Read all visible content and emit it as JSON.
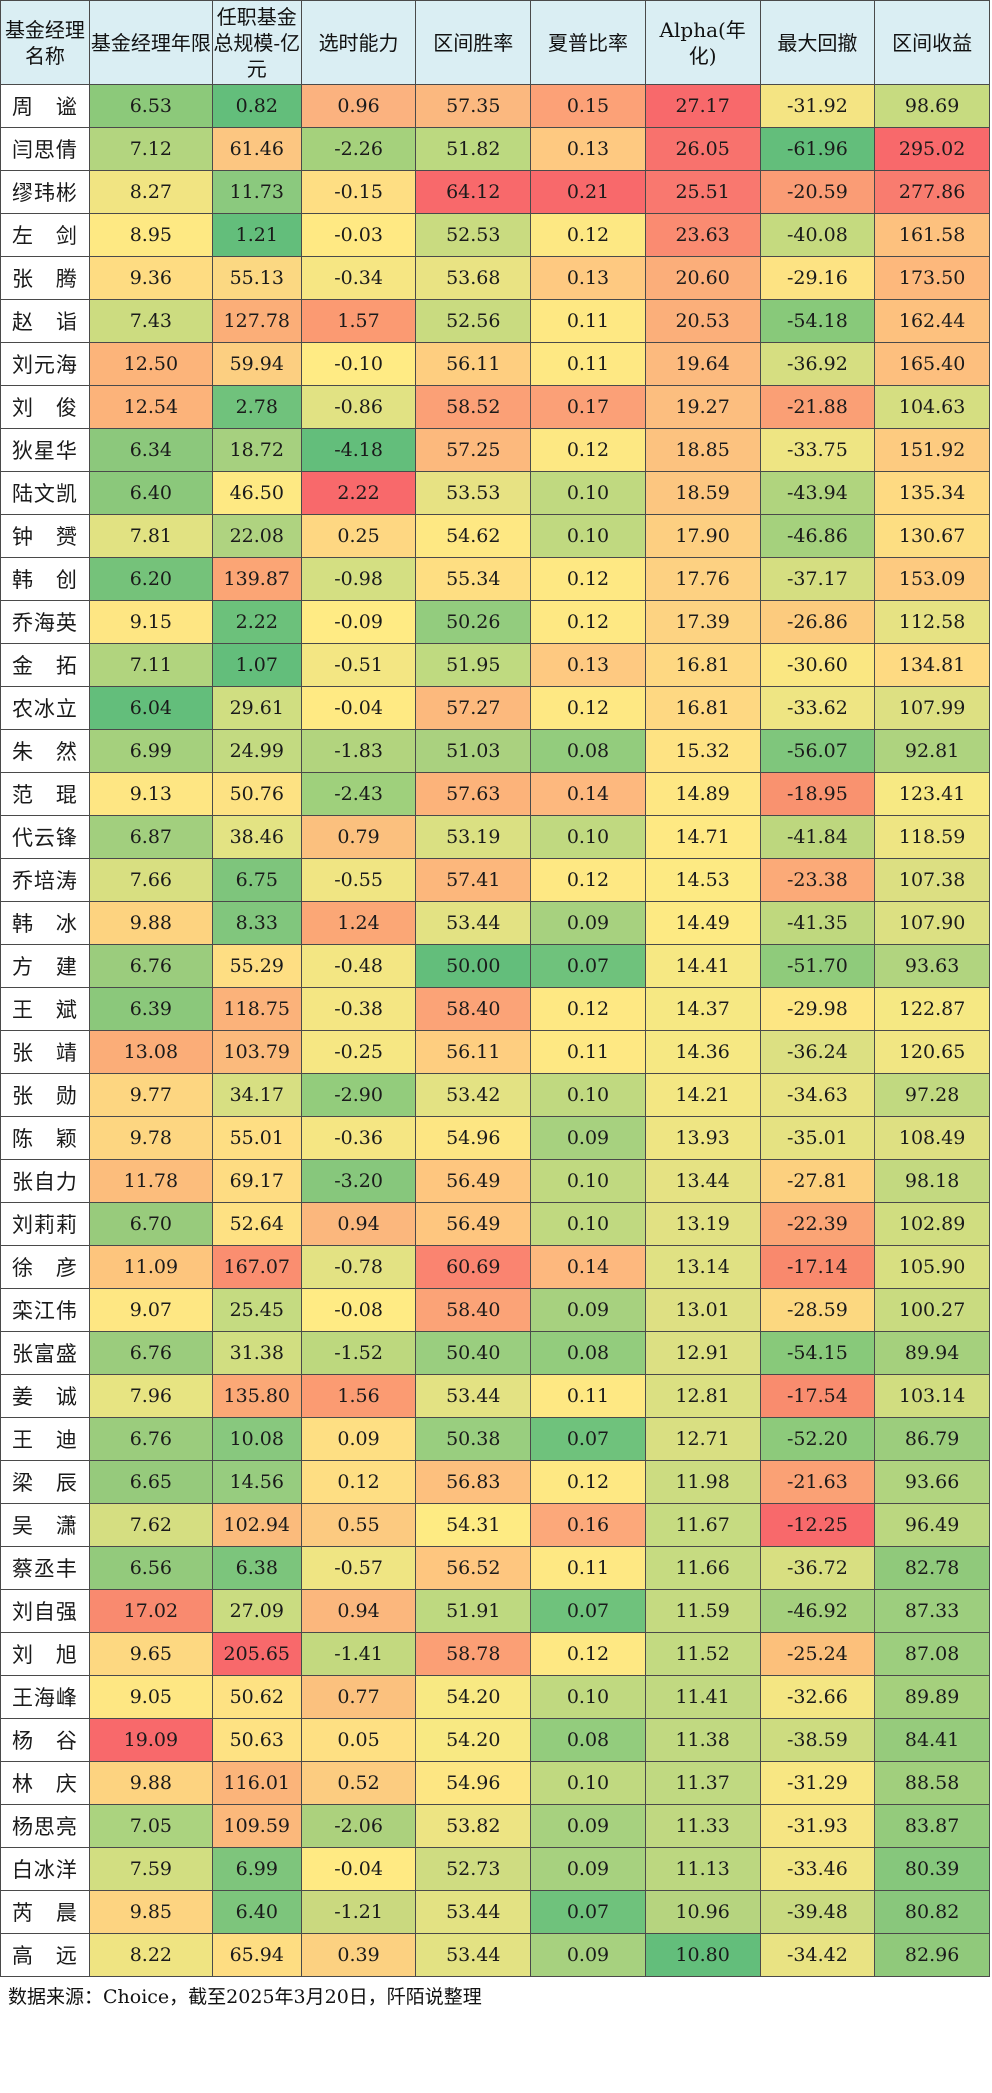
{
  "table": {
    "headers": [
      "基金经理名称",
      "基金经理年限",
      "任职基金总规模-亿元",
      "选时能力",
      "区间胜率",
      "夏普比率",
      "Alpha(年化)",
      "最大回撤",
      "区间收益"
    ],
    "rows": [
      {
        "name": "周　谧",
        "values": [
          "6.53",
          "0.82",
          "0.96",
          "57.35",
          "0.15",
          "27.17",
          "-31.92",
          "98.69"
        ],
        "colors": [
          "#8CC97A",
          "#63BE7B",
          "#FBB27F",
          "#FBB87F",
          "#FCA177",
          "#F8696B",
          "#F4E483",
          "#C7DB80"
        ]
      },
      {
        "name": "闫思倩",
        "values": [
          "7.12",
          "61.46",
          "-2.26",
          "51.82",
          "0.13",
          "26.05",
          "-61.96",
          "295.02"
        ],
        "colors": [
          "#B3D57F",
          "#FCC681",
          "#A5D17C",
          "#BCD980",
          "#FEC981",
          "#F8726D",
          "#63BE7B",
          "#F8696B"
        ]
      },
      {
        "name": "缪玮彬",
        "values": [
          "8.27",
          "11.73",
          "-0.15",
          "64.12",
          "0.21",
          "25.51",
          "-20.59",
          "277.86"
        ],
        "colors": [
          "#F1E482",
          "#8BC97E",
          "#FEDE83",
          "#F8696B",
          "#F8696B",
          "#F9786F",
          "#FA9C75",
          "#F97C6F"
        ]
      },
      {
        "name": "左　剑",
        "values": [
          "8.95",
          "1.21",
          "-0.03",
          "52.53",
          "0.12",
          "23.63",
          "-40.08",
          "161.58"
        ],
        "colors": [
          "#FEE983",
          "#63BE7B",
          "#FFE983",
          "#C9DB80",
          "#FDE883",
          "#FA8B71",
          "#C5DA7F",
          "#FDC17E"
        ]
      },
      {
        "name": "张　腾",
        "values": [
          "9.36",
          "55.13",
          "-0.34",
          "53.68",
          "0.13",
          "20.60",
          "-29.16",
          "173.50"
        ],
        "colors": [
          "#FEDC82",
          "#FBD882",
          "#F6E683",
          "#E9E383",
          "#FEC981",
          "#FBAE7A",
          "#FDE383",
          "#FDB87C"
        ]
      },
      {
        "name": "赵　诣",
        "values": [
          "7.43",
          "127.78",
          "1.57",
          "52.56",
          "0.11",
          "20.53",
          "-54.18",
          "162.44"
        ],
        "colors": [
          "#CCDC80",
          "#FBAE78",
          "#FB9A72",
          "#C9DB80",
          "#FEE883",
          "#FBAF7A",
          "#88C97A",
          "#FDC17E"
        ]
      },
      {
        "name": "刘元海",
        "values": [
          "12.50",
          "59.94",
          "-0.10",
          "56.11",
          "0.11",
          "19.64",
          "-36.92",
          "165.40"
        ],
        "colors": [
          "#FCB47A",
          "#FCCF81",
          "#FFEB84",
          "#FECE80",
          "#FEE883",
          "#FCBA7E",
          "#D6DE81",
          "#FDBF7E"
        ]
      },
      {
        "name": "刘　俊",
        "values": [
          "12.54",
          "2.78",
          "-0.86",
          "58.52",
          "0.17",
          "19.27",
          "-21.88",
          "104.63"
        ],
        "colors": [
          "#FCB37A",
          "#70C27C",
          "#E1E283",
          "#FBA076",
          "#FBA077",
          "#FCBE7F",
          "#FA9F75",
          "#D5DE81"
        ]
      },
      {
        "name": "狄星华",
        "values": [
          "6.34",
          "18.72",
          "-4.18",
          "57.25",
          "0.12",
          "18.85",
          "-33.75",
          "151.92"
        ],
        "colors": [
          "#8CC87C",
          "#A6D07F",
          "#63BE7B",
          "#FCB97D",
          "#FDE883",
          "#FCC27F",
          "#EEE583",
          "#FDCB80"
        ]
      },
      {
        "name": "陆文凯",
        "values": [
          "6.40",
          "46.50",
          "2.22",
          "53.53",
          "0.10",
          "18.59",
          "-43.94",
          "135.34"
        ],
        "colors": [
          "#8BC87B",
          "#FEE983",
          "#F8696B",
          "#E7E283",
          "#C0D980",
          "#FCC680",
          "#B0D47E",
          "#FEDA82"
        ]
      },
      {
        "name": "钟　赟",
        "values": [
          "7.81",
          "22.08",
          "0.25",
          "54.62",
          "0.10",
          "17.90",
          "-46.86",
          "130.67"
        ],
        "colors": [
          "#E1E282",
          "#AFD380",
          "#FED782",
          "#FEE883",
          "#C0D980",
          "#FDCF81",
          "#A5D17D",
          "#FDDE82"
        ]
      },
      {
        "name": "韩　创",
        "values": [
          "6.20",
          "139.87",
          "-0.98",
          "55.34",
          "0.12",
          "17.76",
          "-37.17",
          "153.09"
        ],
        "colors": [
          "#75C27A",
          "#FBA575",
          "#D4DF82",
          "#FEDE82",
          "#FEE883",
          "#FDD182",
          "#D5DE81",
          "#FDCA80"
        ]
      },
      {
        "name": "乔海英",
        "values": [
          "9.15",
          "2.22",
          "-0.09",
          "50.26",
          "0.12",
          "17.39",
          "-26.86",
          "112.58"
        ],
        "colors": [
          "#FEE683",
          "#6CC17B",
          "#FFEB84",
          "#93CC7E",
          "#FEE883",
          "#FDD382",
          "#FCCB7E",
          "#E6E283"
        ]
      },
      {
        "name": "金　拓",
        "values": [
          "7.11",
          "1.07",
          "-0.51",
          "51.95",
          "0.13",
          "16.81",
          "-30.60",
          "134.81"
        ],
        "colors": [
          "#B1D47E",
          "#63BE7B",
          "#F3E683",
          "#BFDA80",
          "#FEC981",
          "#FED882",
          "#FAE782",
          "#FEDA82"
        ]
      },
      {
        "name": "农冰立",
        "values": [
          "6.04",
          "29.61",
          "-0.04",
          "57.27",
          "0.12",
          "16.81",
          "-33.62",
          "107.99"
        ],
        "colors": [
          "#63BE7B",
          "#D0DE81",
          "#FFEA83",
          "#FCB97D",
          "#FEE883",
          "#FED882",
          "#EEE583",
          "#DDE082"
        ]
      },
      {
        "name": "朱　然",
        "values": [
          "6.99",
          "24.99",
          "-1.83",
          "51.03",
          "0.08",
          "15.32",
          "-56.07",
          "92.81"
        ],
        "colors": [
          "#A5D07D",
          "#C3DA81",
          "#B2D47E",
          "#AAD17F",
          "#93CC7D",
          "#FEE383",
          "#7FC67C",
          "#AED37F"
        ]
      },
      {
        "name": "范　琨",
        "values": [
          "9.13",
          "50.76",
          "-2.43",
          "57.63",
          "0.14",
          "14.89",
          "-18.95",
          "123.41"
        ],
        "colors": [
          "#FEE683",
          "#FDE283",
          "#9FD07C",
          "#FCB37A",
          "#FDB87E",
          "#FEE783",
          "#F9926F",
          "#F7E983"
        ]
      },
      {
        "name": "代云锋",
        "values": [
          "6.87",
          "38.46",
          "0.79",
          "53.19",
          "0.10",
          "14.71",
          "-41.84",
          "118.59"
        ],
        "colors": [
          "#A2CF7E",
          "#E3E383",
          "#FBC07E",
          "#DAE082",
          "#C0D980",
          "#FEE983",
          "#BDD77E",
          "#EEE583"
        ]
      },
      {
        "name": "乔培涛",
        "values": [
          "7.66",
          "6.75",
          "-0.55",
          "57.41",
          "0.12",
          "14.53",
          "-23.38",
          "107.38"
        ],
        "colors": [
          "#D8DF81",
          "#7EC57C",
          "#F0E583",
          "#FCB77C",
          "#FEE883",
          "#FDEA83",
          "#FBAA78",
          "#DCDF82"
        ]
      },
      {
        "name": "韩　冰",
        "values": [
          "9.88",
          "8.33",
          "1.24",
          "53.44",
          "0.09",
          "14.49",
          "-41.35",
          "107.90"
        ],
        "colors": [
          "#FDD380",
          "#81C67D",
          "#FBA776",
          "#E3E283",
          "#A7D17F",
          "#FDEA83",
          "#BFD87E",
          "#DCE082"
        ]
      },
      {
        "name": "方　建",
        "values": [
          "6.76",
          "55.29",
          "-0.48",
          "50.00",
          "0.07",
          "14.41",
          "-51.70",
          "93.63"
        ],
        "colors": [
          "#9BCC7D",
          "#FEDE83",
          "#F3E683",
          "#63BE7B",
          "#6FC27C",
          "#F6E883",
          "#8FCB7B",
          "#B1D47F"
        ]
      },
      {
        "name": "王　斌",
        "values": [
          "6.39",
          "118.75",
          "-0.38",
          "58.40",
          "0.12",
          "14.37",
          "-29.98",
          "122.87"
        ],
        "colors": [
          "#8BC87B",
          "#FBB27A",
          "#F4E683",
          "#FBA377",
          "#FEE883",
          "#F6E883",
          "#FDE683",
          "#F5E883"
        ]
      },
      {
        "name": "张　靖",
        "values": [
          "13.08",
          "103.79",
          "-0.25",
          "56.11",
          "0.11",
          "14.36",
          "-36.24",
          "120.65"
        ],
        "colors": [
          "#FBAD78",
          "#FBBA7C",
          "#F6E783",
          "#FECE80",
          "#FEE883",
          "#F6E883",
          "#DCE082",
          "#F1E683"
        ]
      },
      {
        "name": "张　勋",
        "values": [
          "9.77",
          "34.17",
          "-2.90",
          "53.42",
          "0.10",
          "14.21",
          "-34.63",
          "97.28"
        ],
        "colors": [
          "#FDD681",
          "#D7DF82",
          "#93CC7C",
          "#E3E283",
          "#C0D980",
          "#F3E783",
          "#E8E382",
          "#C1D980"
        ]
      },
      {
        "name": "陈　颖",
        "values": [
          "9.78",
          "55.01",
          "-0.36",
          "54.96",
          "0.09",
          "13.93",
          "-35.01",
          "108.49"
        ],
        "colors": [
          "#FDD681",
          "#FEDE83",
          "#F5E683",
          "#FDE683",
          "#A7D17F",
          "#EEE583",
          "#E5E282",
          "#DEE082"
        ]
      },
      {
        "name": "张自力",
        "values": [
          "11.78",
          "69.17",
          "-3.20",
          "56.49",
          "0.10",
          "13.44",
          "-27.81",
          "98.18"
        ],
        "colors": [
          "#FCBD7C",
          "#FEDC82",
          "#87C77C",
          "#FEC67F",
          "#C0D980",
          "#E5E283",
          "#FCD07F",
          "#C3D980"
        ]
      },
      {
        "name": "刘莉莉",
        "values": [
          "6.70",
          "52.64",
          "0.94",
          "56.49",
          "0.10",
          "13.19",
          "-22.39",
          "102.89"
        ],
        "colors": [
          "#98CB7C",
          "#FEE183",
          "#FBB77D",
          "#FEC67F",
          "#C0D980",
          "#E1E183",
          "#FAA475",
          "#D0DD80"
        ]
      },
      {
        "name": "徐　彦",
        "values": [
          "11.09",
          "167.07",
          "-0.78",
          "60.69",
          "0.14",
          "13.14",
          "-17.14",
          "105.90"
        ],
        "colors": [
          "#FDC57D",
          "#FA8E70",
          "#E3E283",
          "#FA8470",
          "#FDB87E",
          "#E0E183",
          "#F9896D",
          "#D8DF81"
        ]
      },
      {
        "name": "栾江伟",
        "values": [
          "9.07",
          "25.45",
          "-0.08",
          "58.40",
          "0.09",
          "13.01",
          "-28.59",
          "100.27"
        ],
        "colors": [
          "#FEE783",
          "#C5DB81",
          "#FFEB84",
          "#FBA377",
          "#A7D17F",
          "#DEE083",
          "#FCD880",
          "#C9DB80"
        ]
      },
      {
        "name": "张富盛",
        "values": [
          "6.76",
          "31.38",
          "-1.52",
          "50.40",
          "0.08",
          "12.91",
          "-54.15",
          "89.94"
        ],
        "colors": [
          "#9BCC7D",
          "#D1DE81",
          "#BDD87E",
          "#9ACE7F",
          "#93CC7D",
          "#DCE083",
          "#88C97A",
          "#A5D07D"
        ]
      },
      {
        "name": "姜　诚",
        "values": [
          "7.96",
          "135.80",
          "1.56",
          "53.44",
          "0.11",
          "12.81",
          "-17.54",
          "103.14"
        ],
        "colors": [
          "#E7E482",
          "#FBA876",
          "#FB9B72",
          "#E3E283",
          "#FEE883",
          "#DBE082",
          "#F98C6E",
          "#D1DD80"
        ]
      },
      {
        "name": "王　迪",
        "values": [
          "6.76",
          "10.08",
          "0.09",
          "50.38",
          "0.07",
          "12.71",
          "-52.20",
          "86.79"
        ],
        "colors": [
          "#9BCC7D",
          "#88C87E",
          "#FEDF83",
          "#99CE7F",
          "#6FC27C",
          "#D9DF82",
          "#8DCA7B",
          "#9CCD7D"
        ]
      },
      {
        "name": "梁　辰",
        "values": [
          "6.65",
          "14.56",
          "0.12",
          "56.83",
          "0.12",
          "11.98",
          "-21.63",
          "93.66"
        ],
        "colors": [
          "#96CA7C",
          "#97CC7F",
          "#FEDE83",
          "#FDC07E",
          "#FEE883",
          "#CCDC81",
          "#FAA175",
          "#B1D47F"
        ]
      },
      {
        "name": "吴　潇",
        "values": [
          "7.62",
          "102.94",
          "0.55",
          "54.31",
          "0.16",
          "11.67",
          "-12.25",
          "96.49"
        ],
        "colors": [
          "#D5DE81",
          "#FBBB7C",
          "#FCCA80",
          "#FEEB83",
          "#FCA87A",
          "#C6DB81",
          "#F8696B",
          "#BBD780"
        ]
      },
      {
        "name": "蔡丞丰",
        "values": [
          "6.56",
          "6.38",
          "-0.57",
          "56.52",
          "0.11",
          "11.66",
          "-36.72",
          "82.78"
        ],
        "colors": [
          "#93CA7C",
          "#7CC57C",
          "#EFE583",
          "#FEC67F",
          "#FEE883",
          "#C6DB81",
          "#D8DF81",
          "#90C97B"
        ]
      },
      {
        "name": "刘自强",
        "values": [
          "17.02",
          "27.09",
          "0.94",
          "51.91",
          "0.07",
          "11.59",
          "-46.92",
          "87.33"
        ],
        "colors": [
          "#F98A6F",
          "#CADC81",
          "#FBB77D",
          "#BED980",
          "#6FC27C",
          "#C5DA81",
          "#A5D07D",
          "#9DCE7E"
        ]
      },
      {
        "name": "刘　旭",
        "values": [
          "9.65",
          "205.65",
          "-1.41",
          "58.78",
          "0.12",
          "11.52",
          "-25.24",
          "87.08"
        ],
        "colors": [
          "#FDD881",
          "#F8696B",
          "#C3D97F",
          "#FB9F75",
          "#FEE883",
          "#C3DA81",
          "#FCC07B",
          "#9DCE7E"
        ]
      },
      {
        "name": "王海峰",
        "values": [
          "9.05",
          "50.62",
          "0.77",
          "54.20",
          "0.10",
          "11.41",
          "-32.66",
          "89.89"
        ],
        "colors": [
          "#FEE783",
          "#FEE283",
          "#FBC17E",
          "#F8E983",
          "#C0D980",
          "#C1D981",
          "#F4E683",
          "#A5D07D"
        ]
      },
      {
        "name": "杨　谷",
        "values": [
          "19.09",
          "50.63",
          "0.05",
          "54.20",
          "0.08",
          "11.38",
          "-38.59",
          "84.41"
        ],
        "colors": [
          "#F8696B",
          "#FEE283",
          "#FEE083",
          "#F8E983",
          "#93CC7D",
          "#C1D981",
          "#CDDC80",
          "#96CB7C"
        ]
      },
      {
        "name": "林　庆",
        "values": [
          "9.88",
          "116.01",
          "0.52",
          "54.96",
          "0.10",
          "11.37",
          "-31.29",
          "88.58"
        ],
        "colors": [
          "#FDD380",
          "#FBB47A",
          "#FCCC80",
          "#FDE683",
          "#C0D980",
          "#C0D981",
          "#F8E783",
          "#A1CF7D"
        ]
      },
      {
        "name": "杨思亮",
        "values": [
          "7.05",
          "109.59",
          "-2.06",
          "53.82",
          "0.09",
          "11.33",
          "-31.93",
          "83.87"
        ],
        "colors": [
          "#ABD37F",
          "#FBB87B",
          "#ACD17D",
          "#EDE483",
          "#A7D17F",
          "#C0D881",
          "#F6E583",
          "#94CB7C"
        ]
      },
      {
        "name": "白冰洋",
        "values": [
          "7.59",
          "6.99",
          "-0.04",
          "52.73",
          "0.09",
          "11.13",
          "-33.46",
          "80.39"
        ],
        "colors": [
          "#D2DE81",
          "#7EC57C",
          "#FFEA83",
          "#CFDC81",
          "#A7D17F",
          "#BCD780",
          "#F0E583",
          "#86C77C"
        ]
      },
      {
        "name": "芮　晨",
        "values": [
          "9.85",
          "6.40",
          "-1.21",
          "53.44",
          "0.07",
          "10.96",
          "-39.48",
          "80.82"
        ],
        "colors": [
          "#FDD481",
          "#7DC57C",
          "#CAD97F",
          "#E3E283",
          "#6FC27C",
          "#B6D47F",
          "#C9DA80",
          "#89C77C"
        ]
      },
      {
        "name": "高　远",
        "values": [
          "8.22",
          "65.94",
          "0.39",
          "53.44",
          "0.09",
          "10.80",
          "-34.42",
          "82.96"
        ],
        "colors": [
          "#EFE482",
          "#FEDD82",
          "#FCD181",
          "#E3E283",
          "#A7D17F",
          "#63BE7B",
          "#E9E383",
          "#90C97B"
        ]
      }
    ]
  },
  "source_note": "数据来源：Choice，截至2025年3月20日，阡陌说整理"
}
